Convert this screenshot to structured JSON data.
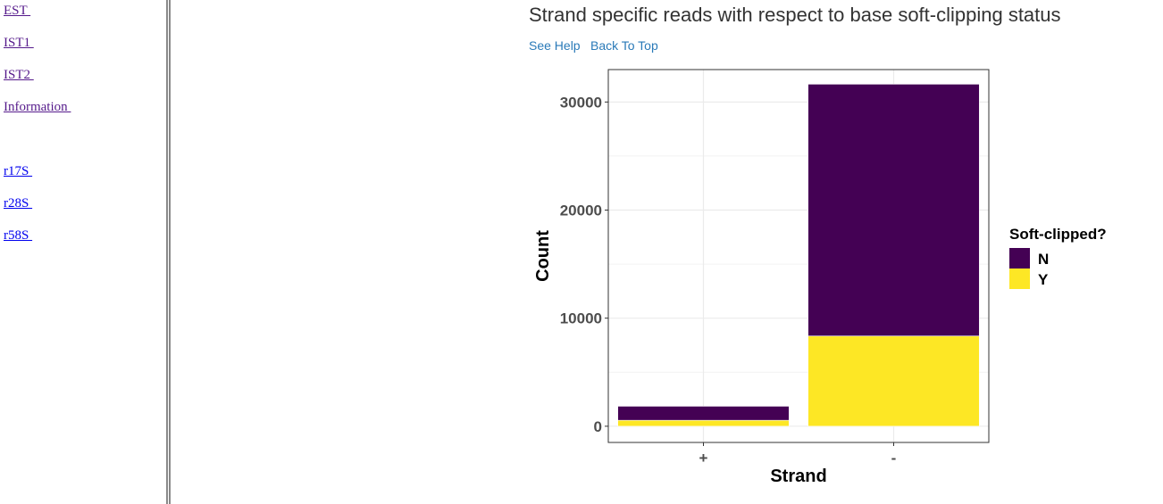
{
  "sidebar": {
    "links": [
      {
        "label": "EST ",
        "visited": true,
        "top": 4
      },
      {
        "label": "IST1 ",
        "visited": true,
        "top": 40
      },
      {
        "label": "IST2 ",
        "visited": true,
        "top": 76
      },
      {
        "label": "Information ",
        "visited": true,
        "top": 112
      },
      {
        "label": "r17S ",
        "visited": false,
        "top": 184
      },
      {
        "label": "r28S ",
        "visited": false,
        "top": 220
      },
      {
        "label": "r58S ",
        "visited": false,
        "top": 256
      }
    ]
  },
  "main": {
    "title": "Strand specific reads with respect to base soft-clipping status",
    "see_help": "See Help",
    "back_to_top": "Back To Top"
  },
  "colors": {
    "N": "#440154",
    "Y": "#fde725",
    "link": "#2a7ab8"
  },
  "chart_data": {
    "type": "bar",
    "stacked": true,
    "categories": [
      "+",
      "-"
    ],
    "series": [
      {
        "name": "Y",
        "values": [
          550,
          8350
        ]
      },
      {
        "name": "N",
        "values": [
          1300,
          23300
        ]
      }
    ],
    "xlabel": "Strand",
    "ylabel": "Count",
    "ylim": [
      -1500,
      33000
    ],
    "yticks": [
      0,
      10000,
      20000,
      30000
    ],
    "grid": true,
    "legend": {
      "title": "Soft-clipped?",
      "entries": [
        "N",
        "Y"
      ],
      "position": "right"
    }
  }
}
